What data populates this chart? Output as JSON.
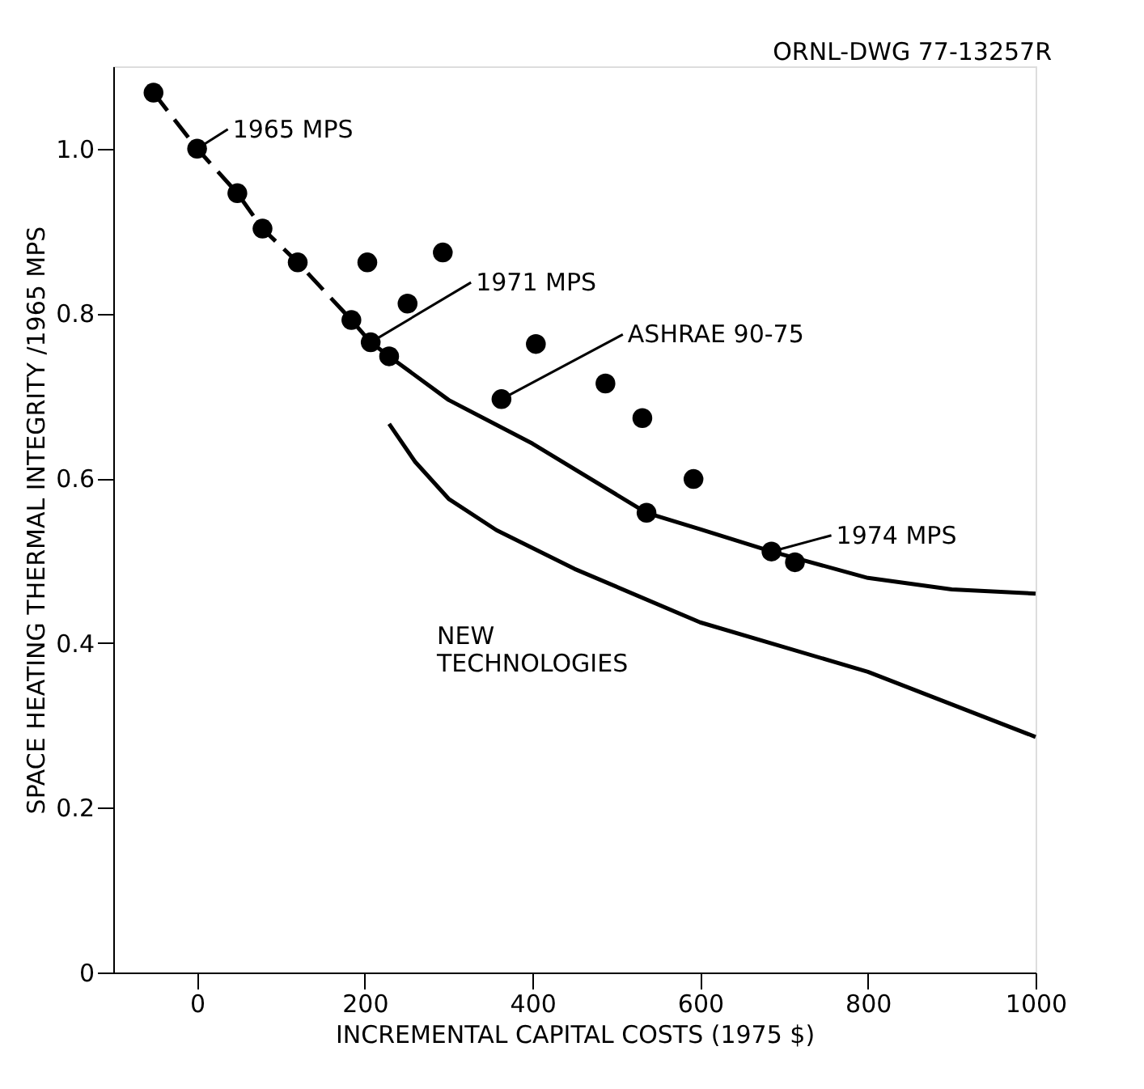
{
  "chart_data": {
    "type": "scatter",
    "xlabel": "INCREMENTAL CAPITAL COSTS (1975 $)",
    "ylabel": "SPACE HEATING THERMAL INTEGRITY /1965 MPS",
    "xlim": [
      -100,
      1000
    ],
    "xticks": [
      0,
      200,
      400,
      600,
      800,
      {
        "value": 1000,
        "label": "1000"
      }
    ],
    "ylim": [
      0,
      1.1
    ],
    "yticks": [
      0,
      0.2,
      0.4,
      0.6,
      0.8,
      {
        "value": 1.0,
        "label": "1.0"
      }
    ],
    "grid": false,
    "annotations": [
      "ORNL-DWG 77-13257R",
      "NEW TECHNOLOGIES",
      {
        "text": "1965 MPS",
        "x": 0,
        "y": 1.0
      },
      {
        "text": "1971 MPS",
        "x": 207,
        "y": 0.765
      },
      {
        "text": "ASHRAE 90-75",
        "x": 363,
        "y": 0.696
      },
      {
        "text": "1974 MPS",
        "x": 685,
        "y": 0.511
      }
    ],
    "series": [
      {
        "color": "#000000",
        "marker": "circle",
        "x": [
          -52,
          0,
          48,
          78,
          120,
          203,
          293,
          251,
          184,
          207,
          229,
          404,
          363,
          487,
          531,
          592,
          536,
          685,
          713
        ],
        "values": [
          1.068,
          1.0,
          0.946,
          0.903,
          0.862,
          0.862,
          0.874,
          0.812,
          0.792,
          0.765,
          0.748,
          0.763,
          0.696,
          0.715,
          0.673,
          0.599,
          0.558,
          0.511,
          0.498
        ]
      },
      {
        "type": "line",
        "color": "#000000",
        "line_style": "dashed",
        "x": [
          -52,
          0,
          48,
          78,
          120,
          184,
          207,
          229
        ],
        "values": [
          1.068,
          1.0,
          0.946,
          0.903,
          0.862,
          0.792,
          0.765,
          0.748
        ]
      },
      {
        "type": "line",
        "color": "#000000",
        "line_style": "solid",
        "x": [
          229,
          300,
          400,
          536,
          600,
          685,
          800,
          900,
          1000
        ],
        "values": [
          0.748,
          0.695,
          0.642,
          0.558,
          0.538,
          0.511,
          0.479,
          0.465,
          0.46
        ]
      },
      {
        "type": "line",
        "color": "#000000",
        "line_style": "solid",
        "x": [
          229,
          260,
          300,
          357,
          450,
          600,
          800,
          1000
        ],
        "values": [
          0.666,
          0.62,
          0.575,
          0.537,
          0.49,
          0.425,
          0.365,
          0.286
        ]
      }
    ]
  }
}
